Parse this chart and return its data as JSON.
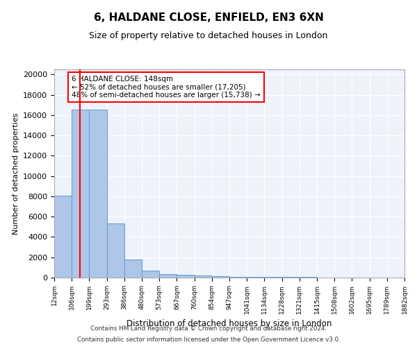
{
  "title1": "6, HALDANE CLOSE, ENFIELD, EN3 6XN",
  "title2": "Size of property relative to detached houses in London",
  "xlabel": "Distribution of detached houses by size in London",
  "ylabel": "Number of detached properties",
  "bin_labels": [
    "12sqm",
    "106sqm",
    "199sqm",
    "293sqm",
    "386sqm",
    "480sqm",
    "573sqm",
    "667sqm",
    "760sqm",
    "854sqm",
    "947sqm",
    "1041sqm",
    "1134sqm",
    "1228sqm",
    "1321sqm",
    "1415sqm",
    "1508sqm",
    "1602sqm",
    "1695sqm",
    "1789sqm",
    "1882sqm"
  ],
  "bar_heights": [
    8050,
    16550,
    16550,
    5300,
    1800,
    700,
    350,
    250,
    200,
    110,
    100,
    70,
    55,
    50,
    35,
    25,
    18,
    12,
    10,
    8
  ],
  "bar_color": "#aec6e8",
  "bar_edge_color": "#5b9bd5",
  "annotation_text": "6 HALDANE CLOSE: 148sqm\n← 52% of detached houses are smaller (17,205)\n48% of semi-detached houses are larger (15,738) →",
  "footer1": "Contains HM Land Registry data © Crown copyright and database right 2024.",
  "footer2": "Contains public sector information licensed under the Open Government Licence v3.0.",
  "ylim": [
    0,
    20500
  ],
  "yticks": [
    0,
    2000,
    4000,
    6000,
    8000,
    10000,
    12000,
    14000,
    16000,
    18000,
    20000
  ],
  "plot_bg_color": "#eef2fa"
}
